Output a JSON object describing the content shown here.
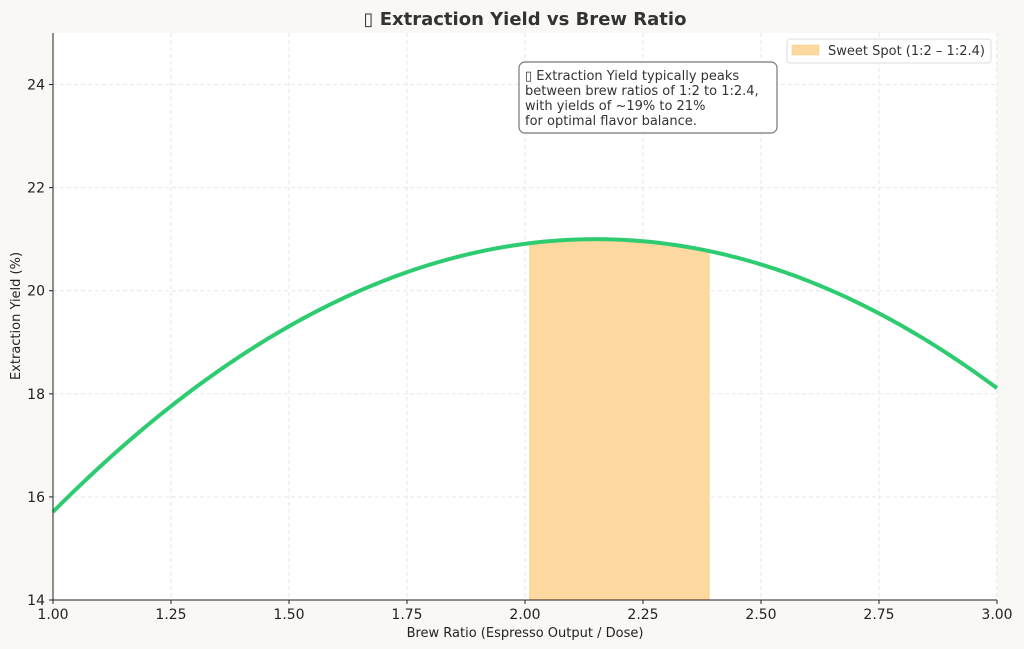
{
  "chart_data": {
    "type": "line",
    "title": "▯ Extraction Yield vs Brew Ratio",
    "xlabel": "Brew Ratio (Espresso Output / Dose)",
    "ylabel": "Extraction Yield (%)",
    "xlim": [
      1.0,
      3.0
    ],
    "ylim": [
      14,
      25
    ],
    "xticks": [
      "1.00",
      "1.25",
      "1.50",
      "1.75",
      "2.00",
      "2.25",
      "2.50",
      "2.75",
      "3.00"
    ],
    "yticks": [
      "14",
      "16",
      "18",
      "20",
      "22",
      "24"
    ],
    "grid": true,
    "series": [
      {
        "name": "Extraction Yield",
        "color": "#2ecc71",
        "formula": "21 - 4*(x-2.15)^2",
        "x": [
          1.0,
          1.25,
          1.5,
          1.75,
          2.0,
          2.15,
          2.25,
          2.5,
          2.75,
          3.0
        ],
        "y": [
          15.71,
          17.76,
          19.31,
          20.36,
          20.91,
          21.0,
          20.96,
          20.51,
          19.56,
          18.11
        ]
      }
    ],
    "shaded_region": {
      "label": "Sweet Spot (1:2 – 1:2.4)",
      "x_range": [
        2.01,
        2.39
      ],
      "color": "#fdd9a0"
    },
    "legend": {
      "placement": "top-right",
      "entries": [
        "Sweet Spot (1:2 – 1:2.4)"
      ]
    },
    "annotation": {
      "lines": [
        "▯ Extraction Yield typically peaks",
        "between brew ratios of 1:2 to 1:2.4,",
        "with yields of ~19% to 21%",
        "for optimal flavor balance."
      ]
    }
  }
}
